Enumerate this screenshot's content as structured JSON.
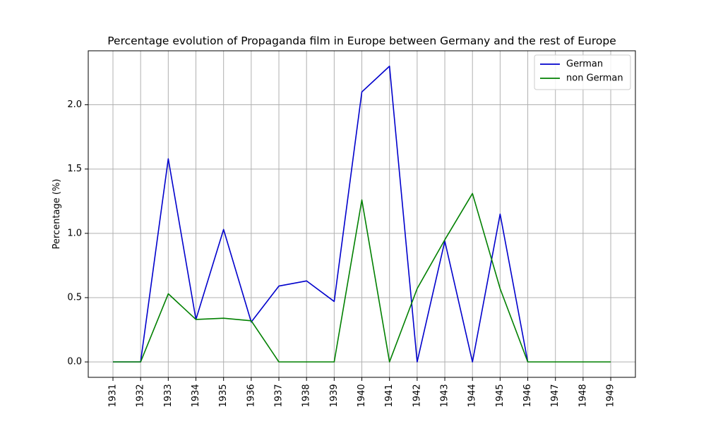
{
  "chart_data": {
    "type": "line",
    "title": "Percentage evolution of Propaganda film in Europe between Germany and the rest of Europe",
    "xlabel": "",
    "ylabel": "Percentage (%)",
    "x": [
      "1931",
      "1932",
      "1933",
      "1934",
      "1935",
      "1936",
      "1937",
      "1938",
      "1939",
      "1940",
      "1941",
      "1942",
      "1943",
      "1944",
      "1945",
      "1946",
      "1947",
      "1948",
      "1949"
    ],
    "yticks": [
      "0.0",
      "0.5",
      "1.0",
      "1.5",
      "2.0"
    ],
    "ylim": [
      -0.12,
      2.42
    ],
    "grid": true,
    "legend_position": "top-right",
    "series": [
      {
        "name": "German",
        "color": "#0000cc",
        "values": [
          0,
          0,
          1.58,
          0.33,
          1.03,
          0.31,
          0.59,
          0.63,
          0.47,
          2.1,
          2.3,
          0,
          0.94,
          0,
          1.15,
          0,
          null,
          null,
          null
        ]
      },
      {
        "name": "non German",
        "color": "#008000",
        "values": [
          0,
          0,
          0.53,
          0.33,
          0.34,
          0.32,
          0,
          0,
          0,
          1.26,
          0,
          0.57,
          0.95,
          1.31,
          0.57,
          0,
          0,
          0,
          0
        ]
      }
    ]
  }
}
